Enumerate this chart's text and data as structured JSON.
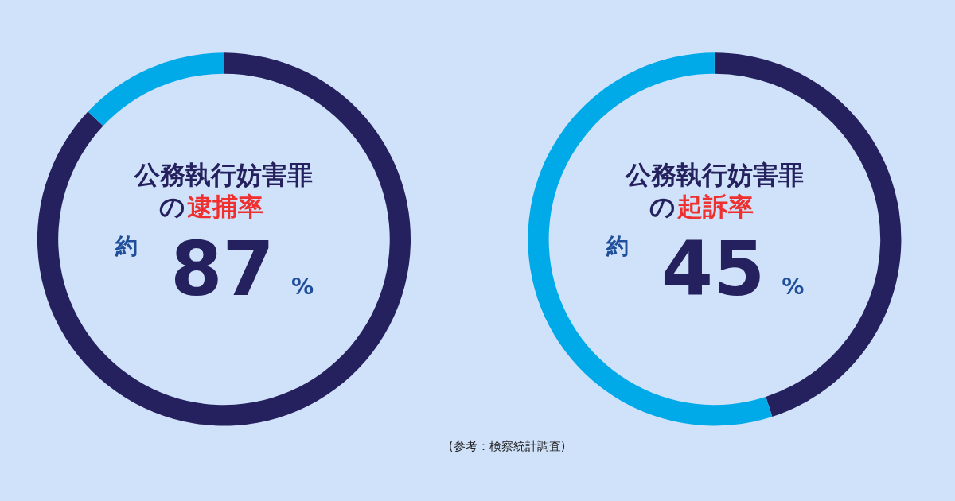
{
  "chart_data": [
    {
      "type": "donut",
      "title": "公務執行妨害罪",
      "subtitle": "の逮捕率",
      "categories": [
        null,
        null
      ],
      "values": [
        87,
        13
      ],
      "colors": [
        "#25215e",
        "#00a9e8"
      ],
      "value_labels": [
        "87",
        null
      ],
      "annotations": [
        "約",
        "%"
      ]
    },
    {
      "type": "donut",
      "title": "公務執行妨害罪",
      "subtitle": "の起訴率",
      "categories": [
        null,
        null
      ],
      "values": [
        45,
        55
      ],
      "colors": [
        "#25215e",
        "#00a9e8"
      ],
      "value_labels": [
        "45",
        null
      ],
      "annotations": [
        "約",
        "%",
        "(参考：検察統計調査)"
      ]
    }
  ]
}
